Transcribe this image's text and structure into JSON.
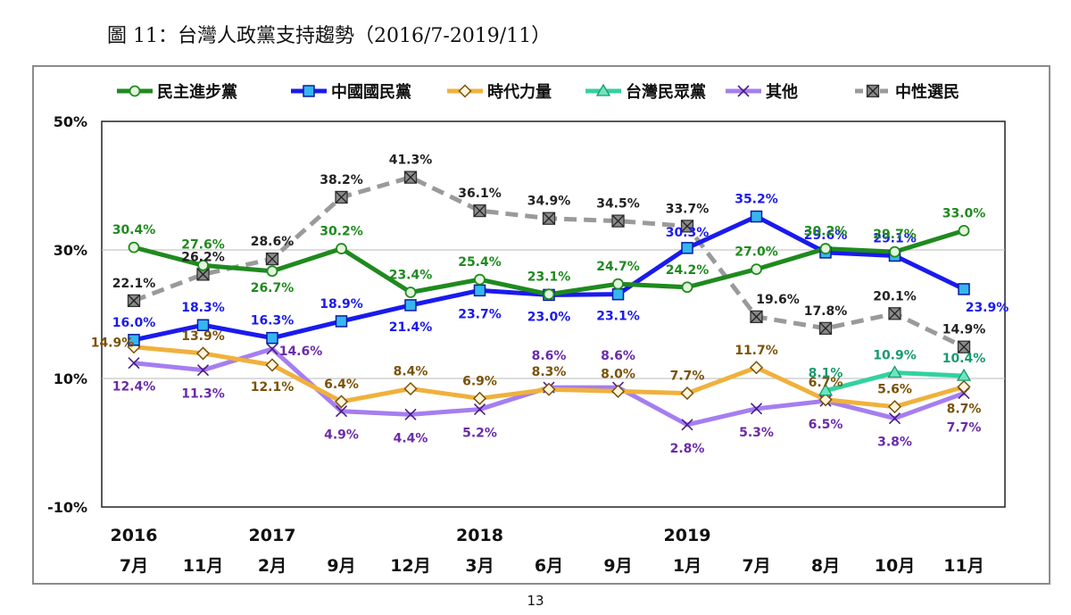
{
  "title": "圖 11：台灣人政黨支持趨勢（2016/7-2019/11）",
  "page_number": "13",
  "chart_data": {
    "type": "line",
    "title": "",
    "xlabel": "",
    "ylabel": "",
    "ylim": [
      -10,
      50
    ],
    "yticks": [
      "50%",
      "30%",
      "10%",
      "-10%"
    ],
    "ytick_values": [
      50,
      30,
      10,
      -10
    ],
    "grid": "horizontal lines at 30% and 10%",
    "legend_position": "top",
    "categories": [
      "7月",
      "11月",
      "2月",
      "9月",
      "12月",
      "3月",
      "6月",
      "9月",
      "1月",
      "7月",
      "8月",
      "10月",
      "11月"
    ],
    "year_labels": [
      {
        "label": "2016",
        "index": 0
      },
      {
        "label": "2017",
        "index": 2
      },
      {
        "label": "2018",
        "index": 5
      },
      {
        "label": "2019",
        "index": 8
      }
    ],
    "series": [
      {
        "name": "民主進步黨",
        "color": "#1f8a1f",
        "label_color": "#1f8a1f",
        "marker": "circle",
        "values": [
          30.4,
          27.6,
          26.7,
          30.2,
          23.4,
          25.4,
          23.1,
          24.7,
          24.2,
          27.0,
          30.2,
          29.7,
          33.0
        ],
        "labels": [
          "30.4%",
          "27.6%",
          "26.7%",
          "30.2%",
          "23.4%",
          "25.4%",
          "23.1%",
          "24.7%",
          "24.2%",
          "27.0%",
          "30.2%",
          "29.7%",
          "33.0%"
        ]
      },
      {
        "name": "中國國民黨",
        "color": "#1a1aee",
        "label_color": "#1a1aee",
        "marker": "square",
        "values": [
          16.0,
          18.3,
          16.3,
          18.9,
          21.4,
          23.7,
          23.0,
          23.1,
          30.3,
          35.2,
          29.6,
          29.1,
          23.9
        ],
        "labels": [
          "16.0%",
          "18.3%",
          "16.3%",
          "18.9%",
          "21.4%",
          "23.7%",
          "23.0%",
          "23.1%",
          "30.3%",
          "35.2%",
          "29.6%",
          "29.1%",
          "23.9%"
        ]
      },
      {
        "name": "時代力量",
        "color": "#f0b13c",
        "label_color": "#7a5208",
        "marker": "diamond",
        "values": [
          14.9,
          13.9,
          12.1,
          6.4,
          8.4,
          6.9,
          8.3,
          8.0,
          7.7,
          11.7,
          6.7,
          5.6,
          8.7
        ],
        "labels": [
          "14.9%",
          "13.9%",
          "12.1%",
          "6.4%",
          "8.4%",
          "6.9%",
          "8.3%",
          "8.0%",
          "7.7%",
          "11.7%",
          "6.7%",
          "5.6%",
          "8.7%"
        ]
      },
      {
        "name": "台灣民眾黨",
        "color": "#33d1a0",
        "label_color": "#169a6e",
        "marker": "triangle",
        "values": [
          null,
          null,
          null,
          null,
          null,
          null,
          null,
          null,
          null,
          null,
          8.1,
          10.9,
          10.4
        ],
        "labels": [
          null,
          null,
          null,
          null,
          null,
          null,
          null,
          null,
          null,
          null,
          "8.1%",
          "10.9%",
          "10.4%"
        ]
      },
      {
        "name": "其他",
        "color": "#a57ef0",
        "label_color": "#6a2ba8",
        "marker": "x",
        "values": [
          12.4,
          11.3,
          14.6,
          4.9,
          4.4,
          5.2,
          8.6,
          8.6,
          2.8,
          5.3,
          6.5,
          3.8,
          7.7
        ],
        "labels": [
          "12.4%",
          "11.3%",
          "14.6%",
          "4.9%",
          "4.4%",
          "5.2%",
          "8.6%",
          "8.6%",
          "2.8%",
          "5.3%",
          "6.5%",
          "3.8%",
          "7.7%"
        ]
      },
      {
        "name": "中性選民",
        "color": "#9a9a9a",
        "label_color": "#222222",
        "marker": "xbox",
        "values": [
          22.1,
          26.2,
          28.6,
          38.2,
          41.3,
          36.1,
          34.9,
          34.5,
          33.7,
          19.6,
          17.8,
          20.1,
          14.9
        ],
        "labels": [
          "22.1%",
          "26.2%",
          "28.6%",
          "38.2%",
          "41.3%",
          "36.1%",
          "34.9%",
          "34.5%",
          "33.7%",
          "19.6%",
          "17.8%",
          "20.1%",
          "14.9%"
        ]
      }
    ]
  }
}
